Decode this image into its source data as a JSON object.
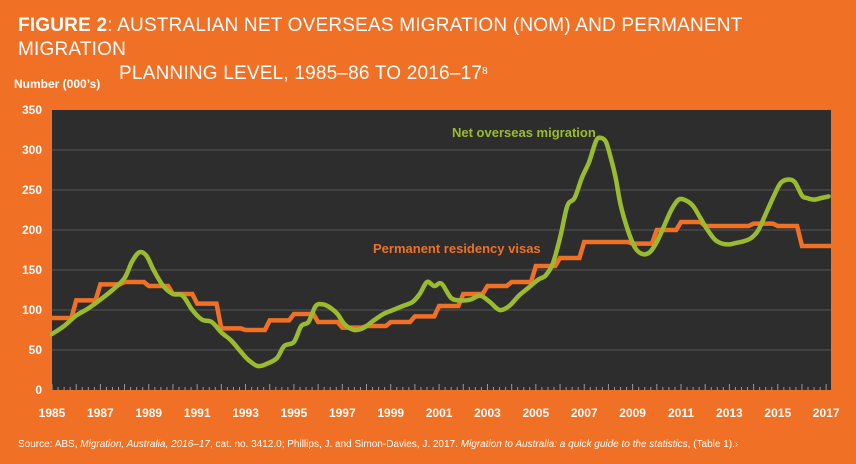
{
  "figure": {
    "label": "FIGURE 2",
    "title_line1": ": AUSTRALIAN NET OVERSEAS MIGRATION (NOM) AND PERMANENT MIGRATION",
    "title_line2": "PLANNING LEVEL, 1985–86 TO 2016–17",
    "title_footnote": "8"
  },
  "source": {
    "prefix": "Source: ABS, ",
    "pub1": "Migration, Australia, 2016–17",
    "mid": ", cat. no. 3412.0; Phillips, J. and Simon-Davies, J. 2017. ",
    "pub2": "Migration to Australia: a quick guide to the statistics",
    "suffix": ", (Table 1).›"
  },
  "colors": {
    "background": "#F07125",
    "plot_bg": "#2D2D2D",
    "grid": "#555555",
    "nom": "#9BBB2E",
    "visas": "#F07125"
  },
  "chart_data": {
    "type": "line",
    "ylabel": "Number (000’s)",
    "xlabel": "",
    "xlim": [
      1985,
      2017.2
    ],
    "ylim": [
      0,
      350
    ],
    "x_ticks": [
      "1985",
      "1987",
      "1989",
      "1991",
      "1993",
      "1995",
      "1997",
      "1999",
      "2001",
      "2003",
      "2005",
      "2007",
      "2009",
      "2011",
      "2013",
      "2015",
      "2017"
    ],
    "y_ticks": [
      "0",
      "50",
      "100",
      "150",
      "200",
      "250",
      "300",
      "350"
    ],
    "grid": true,
    "series": [
      {
        "name": "Net overseas migration",
        "color": "#9BBB2E",
        "x": [
          1985,
          1985.5,
          1986,
          1986.5,
          1987,
          1987.5,
          1988,
          1988.3,
          1988.6,
          1988.9,
          1989.2,
          1989.6,
          1990,
          1990.4,
          1990.8,
          1991.2,
          1991.6,
          1992,
          1992.4,
          1992.8,
          1993.1,
          1993.5,
          1993.9,
          1994.3,
          1994.6,
          1995,
          1995.3,
          1995.6,
          1995.9,
          1996.2,
          1996.5,
          1996.8,
          1997.1,
          1997.5,
          1997.9,
          1998.3,
          1998.7,
          1999.1,
          1999.5,
          1999.9,
          2000.2,
          2000.5,
          2000.8,
          2001.1,
          2001.5,
          2001.9,
          2002.3,
          2002.7,
          2003.1,
          2003.5,
          2003.9,
          2004.3,
          2004.7,
          2005.1,
          2005.4,
          2005.7,
          2006,
          2006.3,
          2006.6,
          2006.9,
          2007.2,
          2007.5,
          2007.7,
          2007.9,
          2008.1,
          2008.3,
          2008.5,
          2008.8,
          2009.1,
          2009.4,
          2009.7,
          2010,
          2010.3,
          2010.6,
          2010.9,
          2011.2,
          2011.5,
          2011.8,
          2012.1,
          2012.4,
          2012.7,
          2013,
          2013.3,
          2013.6,
          2013.9,
          2014.2,
          2014.5,
          2014.8,
          2015.1,
          2015.4,
          2015.7,
          2016,
          2016.2,
          2016.5,
          2016.8,
          2017.1
        ],
        "values": [
          70,
          80,
          93,
          102,
          113,
          125,
          140,
          160,
          172,
          168,
          150,
          130,
          120,
          118,
          100,
          88,
          85,
          72,
          62,
          48,
          38,
          30,
          33,
          40,
          55,
          60,
          80,
          85,
          105,
          107,
          103,
          95,
          82,
          75,
          78,
          87,
          95,
          100,
          105,
          110,
          120,
          135,
          130,
          133,
          115,
          112,
          113,
          118,
          110,
          100,
          105,
          118,
          128,
          138,
          143,
          158,
          190,
          230,
          240,
          265,
          285,
          312,
          315,
          310,
          290,
          265,
          232,
          200,
          178,
          170,
          172,
          185,
          205,
          225,
          238,
          237,
          230,
          215,
          200,
          188,
          183,
          182,
          184,
          186,
          190,
          200,
          220,
          240,
          258,
          263,
          260,
          243,
          240,
          238,
          240,
          242
        ]
      },
      {
        "name": "Permanent residency visas",
        "color": "#F07125",
        "x": [
          1985,
          1985.8,
          1986,
          1986.8,
          1987,
          1987.8,
          1988,
          1988.8,
          1989,
          1989.8,
          1990,
          1990.8,
          1991,
          1991.8,
          1992,
          1992.8,
          1993,
          1993.8,
          1994,
          1994.8,
          1995,
          1995.8,
          1996,
          1996.8,
          1997,
          1997.8,
          1998,
          1998.8,
          1999,
          1999.8,
          2000,
          2000.8,
          2001,
          2001.8,
          2002,
          2002.8,
          2003,
          2003.8,
          2004,
          2004.8,
          2005,
          2005.8,
          2006,
          2006.8,
          2007,
          2007.8,
          2008,
          2008.8,
          2009,
          2009.8,
          2010,
          2010.8,
          2011,
          2011.8,
          2012,
          2012.8,
          2013,
          2013.8,
          2014,
          2014.8,
          2015,
          2015.8,
          2016,
          2016.8,
          2017,
          2017.2
        ],
        "values": [
          90,
          90,
          112,
          112,
          132,
          132,
          135,
          135,
          130,
          130,
          120,
          120,
          108,
          108,
          77,
          77,
          75,
          75,
          87,
          87,
          95,
          95,
          85,
          85,
          78,
          78,
          80,
          80,
          85,
          85,
          92,
          92,
          105,
          105,
          120,
          120,
          130,
          130,
          135,
          135,
          155,
          155,
          165,
          165,
          185,
          185,
          185,
          185,
          183,
          183,
          200,
          200,
          210,
          210,
          205,
          205,
          205,
          205,
          208,
          208,
          205,
          205,
          180,
          180,
          180,
          180
        ]
      }
    ],
    "annotations": [
      {
        "text": "Net overseas migration",
        "series": "Net overseas migration"
      },
      {
        "text": "Permanent residency visas",
        "series": "Permanent residency visas"
      }
    ]
  }
}
